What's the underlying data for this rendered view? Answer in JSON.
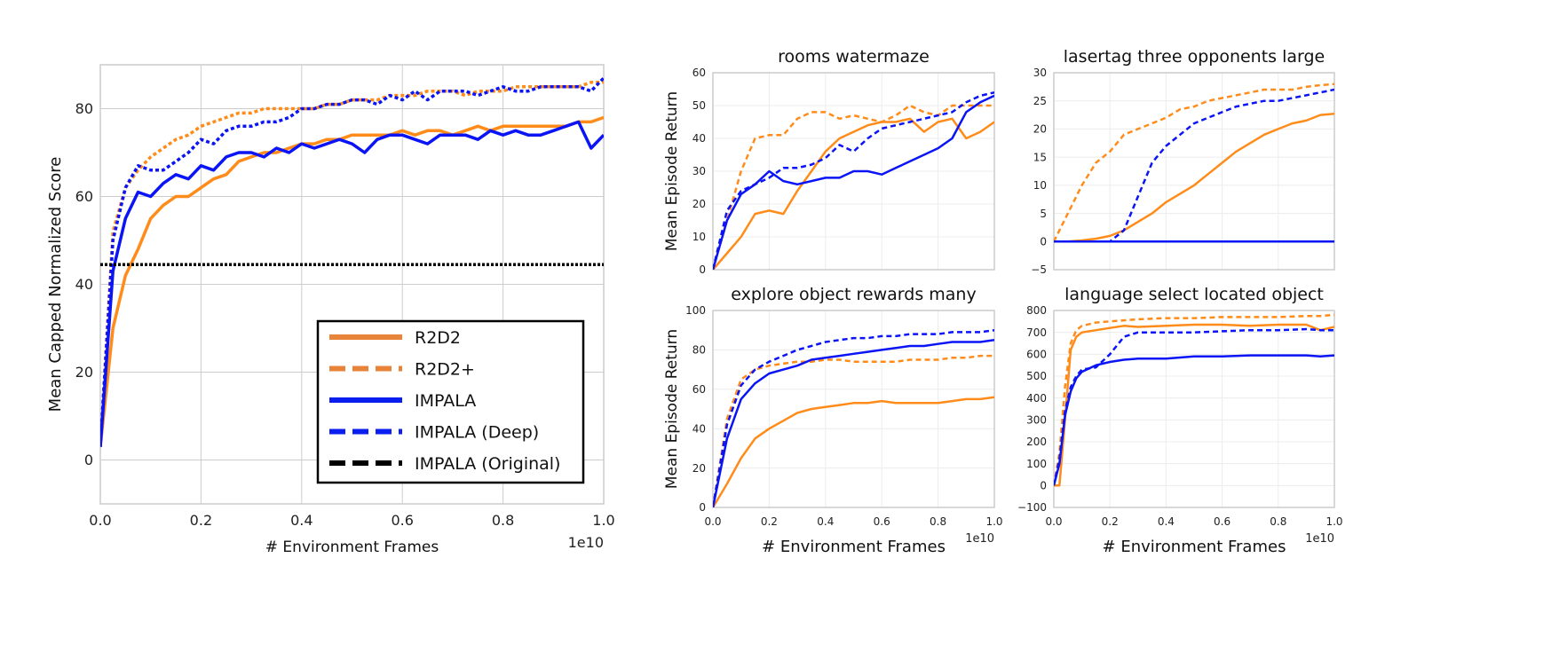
{
  "colors": {
    "orange": "#ff8c1a",
    "blue": "#0a14f5",
    "black": "#000000",
    "legend_orange": "#e8843a",
    "legend_blue": "#0a1ef0"
  },
  "chart_data": [
    {
      "type": "line",
      "title": "",
      "xlabel": "# Environment Frames",
      "ylabel": "Mean Capped Normalized Score",
      "x_scale_note": "1e10",
      "xlim": [
        0,
        1.0
      ],
      "ylim": [
        -10,
        90
      ],
      "xticks": [
        0.0,
        0.2,
        0.4,
        0.6,
        0.8,
        1.0
      ],
      "xtick_labels": [
        "0.0",
        "0.2",
        "0.4",
        "0.6",
        "0.8",
        "1.0"
      ],
      "yticks": [
        0,
        20,
        40,
        60,
        80
      ],
      "ytick_labels": [
        "0",
        "20",
        "40",
        "60",
        "80"
      ],
      "grid": true,
      "legend": "lower-right",
      "x": [
        0,
        0.025,
        0.05,
        0.075,
        0.1,
        0.125,
        0.15,
        0.175,
        0.2,
        0.225,
        0.25,
        0.275,
        0.3,
        0.325,
        0.35,
        0.375,
        0.4,
        0.425,
        0.45,
        0.475,
        0.5,
        0.525,
        0.55,
        0.575,
        0.6,
        0.625,
        0.65,
        0.675,
        0.7,
        0.725,
        0.75,
        0.775,
        0.8,
        0.825,
        0.85,
        0.875,
        0.9,
        0.925,
        0.95,
        0.975,
        1.0
      ],
      "series": [
        {
          "name": "R2D2",
          "style": "solid",
          "color": "orange",
          "values": [
            3,
            30,
            42,
            48,
            55,
            58,
            60,
            60,
            62,
            64,
            65,
            68,
            69,
            70,
            70,
            71,
            72,
            72,
            73,
            73,
            74,
            74,
            74,
            74,
            75,
            74,
            75,
            75,
            74,
            75,
            76,
            75,
            76,
            76,
            76,
            76,
            76,
            76,
            77,
            77,
            78
          ]
        },
        {
          "name": "R2D2+",
          "style": "dashed",
          "color": "orange",
          "values": [
            3,
            52,
            62,
            66,
            69,
            71,
            73,
            74,
            76,
            77,
            78,
            79,
            79,
            80,
            80,
            80,
            80,
            80,
            81,
            81,
            82,
            82,
            82,
            83,
            83,
            83,
            84,
            84,
            84,
            83,
            84,
            84,
            84,
            85,
            85,
            85,
            85,
            85,
            85,
            86,
            86
          ]
        },
        {
          "name": "IMPALA",
          "style": "solid",
          "color": "blue",
          "values": [
            3,
            43,
            55,
            61,
            60,
            63,
            65,
            64,
            67,
            66,
            69,
            70,
            70,
            69,
            71,
            70,
            72,
            71,
            72,
            73,
            72,
            70,
            73,
            74,
            74,
            73,
            72,
            74,
            74,
            74,
            73,
            75,
            74,
            75,
            74,
            74,
            75,
            76,
            77,
            71,
            74
          ]
        },
        {
          "name": "IMPALA (Deep)",
          "style": "dashed",
          "color": "blue",
          "values": [
            3,
            50,
            62,
            67,
            66,
            66,
            68,
            70,
            73,
            72,
            75,
            76,
            76,
            77,
            77,
            78,
            80,
            80,
            81,
            81,
            82,
            82,
            81,
            83,
            82,
            84,
            82,
            84,
            84,
            84,
            83,
            84,
            85,
            84,
            84,
            85,
            85,
            85,
            85,
            84,
            87
          ]
        },
        {
          "name": "IMPALA (Original)",
          "style": "dotted",
          "color": "black",
          "constant": 44.5
        }
      ]
    },
    {
      "type": "line",
      "title": "rooms watermaze",
      "ylabel": "Mean Episode Return",
      "xlabel": "",
      "xlim": [
        0,
        1.0
      ],
      "ylim": [
        0,
        60
      ],
      "yticks": [
        0,
        10,
        20,
        30,
        40,
        50,
        60
      ],
      "ytick_labels": [
        "0",
        "10",
        "20",
        "30",
        "40",
        "50",
        "60"
      ],
      "xtick_labels": [],
      "grid": true,
      "x": [
        0,
        0.05,
        0.1,
        0.15,
        0.2,
        0.25,
        0.3,
        0.35,
        0.4,
        0.45,
        0.5,
        0.55,
        0.6,
        0.65,
        0.7,
        0.75,
        0.8,
        0.85,
        0.9,
        0.95,
        1.0
      ],
      "series": [
        {
          "name": "R2D2",
          "style": "solid",
          "color": "orange",
          "values": [
            0,
            5,
            10,
            17,
            18,
            17,
            24,
            30,
            36,
            40,
            42,
            44,
            45,
            45,
            46,
            42,
            45,
            46,
            40,
            42,
            45
          ]
        },
        {
          "name": "R2D2+",
          "style": "dashed",
          "color": "orange",
          "values": [
            0,
            15,
            30,
            40,
            41,
            41,
            46,
            48,
            48,
            46,
            47,
            46,
            45,
            47,
            50,
            48,
            47,
            50,
            50,
            50,
            50
          ]
        },
        {
          "name": "IMPALA",
          "style": "solid",
          "color": "blue",
          "values": [
            0,
            15,
            23,
            26,
            30,
            27,
            26,
            27,
            28,
            28,
            30,
            30,
            29,
            31,
            33,
            35,
            37,
            40,
            48,
            51,
            53
          ]
        },
        {
          "name": "IMPALA (Deep)",
          "style": "dashed",
          "color": "blue",
          "values": [
            0,
            18,
            24,
            26,
            28,
            31,
            31,
            32,
            34,
            38,
            36,
            40,
            43,
            44,
            45,
            46,
            47,
            48,
            51,
            53,
            54
          ]
        }
      ]
    },
    {
      "type": "line",
      "title": "lasertag three opponents large",
      "ylabel": "",
      "xlabel": "",
      "xlim": [
        0,
        1.0
      ],
      "ylim": [
        -5,
        30
      ],
      "yticks": [
        -5,
        0,
        5,
        10,
        15,
        20,
        25,
        30
      ],
      "ytick_labels": [
        "−5",
        "0",
        "5",
        "10",
        "15",
        "20",
        "25",
        "30"
      ],
      "xtick_labels": [],
      "grid": true,
      "x": [
        0,
        0.05,
        0.1,
        0.15,
        0.2,
        0.25,
        0.3,
        0.35,
        0.4,
        0.45,
        0.5,
        0.55,
        0.6,
        0.65,
        0.7,
        0.75,
        0.8,
        0.85,
        0.9,
        0.95,
        1.0
      ],
      "series": [
        {
          "name": "R2D2",
          "style": "solid",
          "color": "orange",
          "values": [
            0,
            0,
            0.2,
            0.5,
            1,
            2,
            3.5,
            5,
            7,
            8.5,
            10,
            12,
            14,
            16,
            17.5,
            19,
            20,
            21,
            21.5,
            22.5,
            22.7
          ]
        },
        {
          "name": "R2D2+",
          "style": "dashed",
          "color": "orange",
          "values": [
            0,
            5,
            10,
            14,
            16,
            19,
            20,
            21,
            22,
            23.5,
            24,
            25,
            25.5,
            26,
            26.5,
            27,
            27,
            27,
            27.5,
            27.8,
            28
          ]
        },
        {
          "name": "IMPALA",
          "style": "solid",
          "color": "blue",
          "values": [
            0,
            0,
            0,
            0,
            0,
            0,
            0,
            0,
            0,
            0,
            0,
            0,
            0,
            0,
            0,
            0,
            0,
            0,
            0,
            0,
            0
          ]
        },
        {
          "name": "IMPALA (Deep)",
          "style": "dashed",
          "color": "blue",
          "values": [
            0,
            0,
            0,
            0,
            0,
            2,
            8,
            14,
            17,
            19,
            21,
            22,
            23,
            24,
            24.5,
            25,
            25,
            25.5,
            26,
            26.5,
            27
          ]
        }
      ]
    },
    {
      "type": "line",
      "title": "explore object rewards many",
      "ylabel": "Mean Episode Return",
      "xlabel": "# Environment Frames",
      "x_scale_note": "1e10",
      "xlim": [
        0,
        1.0
      ],
      "ylim": [
        0,
        100
      ],
      "yticks": [
        0,
        20,
        40,
        60,
        80,
        100
      ],
      "ytick_labels": [
        "0",
        "20",
        "40",
        "60",
        "80",
        "100"
      ],
      "xticks": [
        0,
        0.2,
        0.4,
        0.6,
        0.8,
        1.0
      ],
      "xtick_labels": [
        "0.0",
        "0.2",
        "0.4",
        "0.6",
        "0.8",
        "1.0"
      ],
      "grid": true,
      "x": [
        0,
        0.05,
        0.1,
        0.15,
        0.2,
        0.25,
        0.3,
        0.35,
        0.4,
        0.45,
        0.5,
        0.55,
        0.6,
        0.65,
        0.7,
        0.75,
        0.8,
        0.85,
        0.9,
        0.95,
        1.0
      ],
      "series": [
        {
          "name": "R2D2",
          "style": "solid",
          "color": "orange",
          "values": [
            0,
            12,
            25,
            35,
            40,
            44,
            48,
            50,
            51,
            52,
            53,
            53,
            54,
            53,
            53,
            53,
            53,
            54,
            55,
            55,
            56
          ]
        },
        {
          "name": "R2D2+",
          "style": "dashed",
          "color": "orange",
          "values": [
            0,
            45,
            65,
            70,
            72,
            73,
            74,
            74,
            75,
            75,
            74,
            74,
            74,
            74,
            75,
            75,
            75,
            76,
            76,
            77,
            77
          ]
        },
        {
          "name": "IMPALA",
          "style": "solid",
          "color": "blue",
          "values": [
            0,
            35,
            55,
            63,
            68,
            70,
            72,
            75,
            76,
            77,
            78,
            79,
            80,
            81,
            82,
            82,
            83,
            84,
            84,
            84,
            85
          ]
        },
        {
          "name": "IMPALA (Deep)",
          "style": "dashed",
          "color": "blue",
          "values": [
            0,
            42,
            62,
            70,
            74,
            77,
            80,
            82,
            84,
            85,
            86,
            86,
            87,
            87,
            88,
            88,
            88,
            89,
            89,
            89,
            90
          ]
        }
      ]
    },
    {
      "type": "line",
      "title": "language select located object",
      "ylabel": "",
      "xlabel": "# Environment Frames",
      "x_scale_note": "1e10",
      "xlim": [
        0,
        1.0
      ],
      "ylim": [
        -100,
        800
      ],
      "yticks": [
        -100,
        0,
        100,
        200,
        300,
        400,
        500,
        600,
        700,
        800
      ],
      "ytick_labels": [
        "−100",
        "0",
        "100",
        "200",
        "300",
        "400",
        "500",
        "600",
        "700",
        "800"
      ],
      "xticks": [
        0,
        0.2,
        0.4,
        0.6,
        0.8,
        1.0
      ],
      "xtick_labels": [
        "0.0",
        "0.2",
        "0.4",
        "0.6",
        "0.8",
        "1.0"
      ],
      "grid": true,
      "x": [
        0,
        0.02,
        0.04,
        0.06,
        0.08,
        0.1,
        0.15,
        0.2,
        0.25,
        0.3,
        0.4,
        0.5,
        0.6,
        0.7,
        0.8,
        0.9,
        0.95,
        1.0
      ],
      "series": [
        {
          "name": "R2D2",
          "style": "solid",
          "color": "orange",
          "values": [
            0,
            0,
            300,
            620,
            680,
            700,
            710,
            720,
            730,
            725,
            730,
            735,
            735,
            730,
            735,
            735,
            710,
            725
          ]
        },
        {
          "name": "R2D2+",
          "style": "dashed",
          "color": "orange",
          "values": [
            0,
            150,
            450,
            650,
            710,
            730,
            745,
            750,
            755,
            760,
            765,
            765,
            770,
            770,
            770,
            775,
            775,
            780
          ]
        },
        {
          "name": "IMPALA",
          "style": "solid",
          "color": "blue",
          "values": [
            0,
            100,
            320,
            430,
            490,
            520,
            550,
            565,
            575,
            580,
            580,
            590,
            590,
            595,
            595,
            595,
            590,
            595
          ]
        },
        {
          "name": "IMPALA (Deep)",
          "style": "dashed",
          "color": "blue",
          "values": [
            0,
            120,
            340,
            450,
            500,
            530,
            540,
            600,
            680,
            700,
            700,
            700,
            705,
            710,
            710,
            715,
            710,
            710
          ]
        }
      ]
    }
  ]
}
